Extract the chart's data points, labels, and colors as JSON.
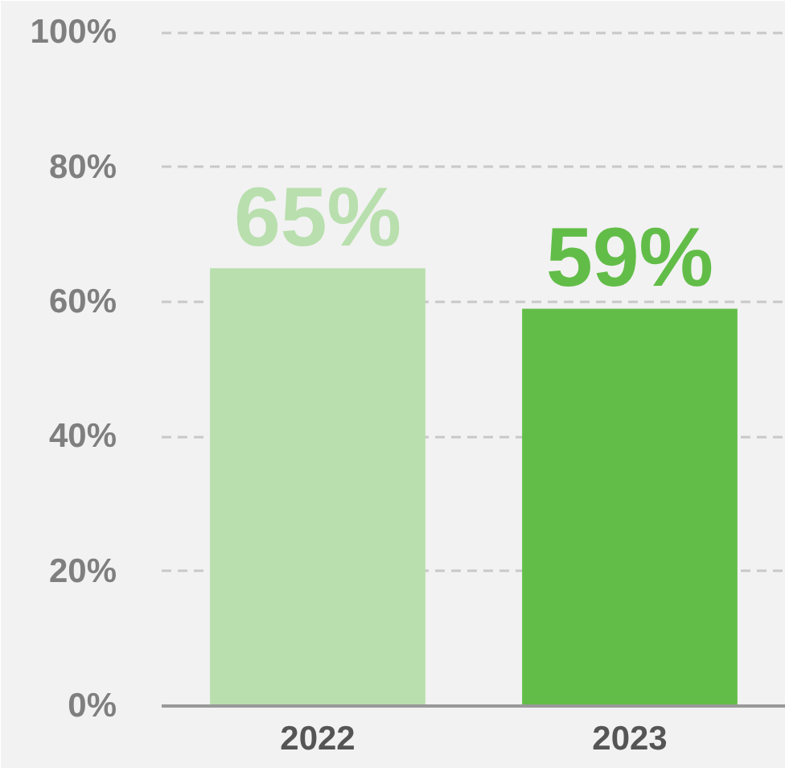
{
  "chart_data": {
    "type": "bar",
    "categories": [
      "2022",
      "2023"
    ],
    "values": [
      65,
      59
    ],
    "colors": [
      "#b8dfad",
      "#62bd48"
    ],
    "value_labels": [
      "65%",
      "59%"
    ],
    "ylim": [
      0,
      104
    ],
    "yticks": [
      {
        "value": 0,
        "label": "0%"
      },
      {
        "value": 20,
        "label": "20%"
      },
      {
        "value": 40,
        "label": "40%"
      },
      {
        "value": 60,
        "label": "60%"
      },
      {
        "value": 80,
        "label": "80%"
      },
      {
        "value": 100,
        "label": "100%"
      }
    ],
    "grid": "y"
  }
}
